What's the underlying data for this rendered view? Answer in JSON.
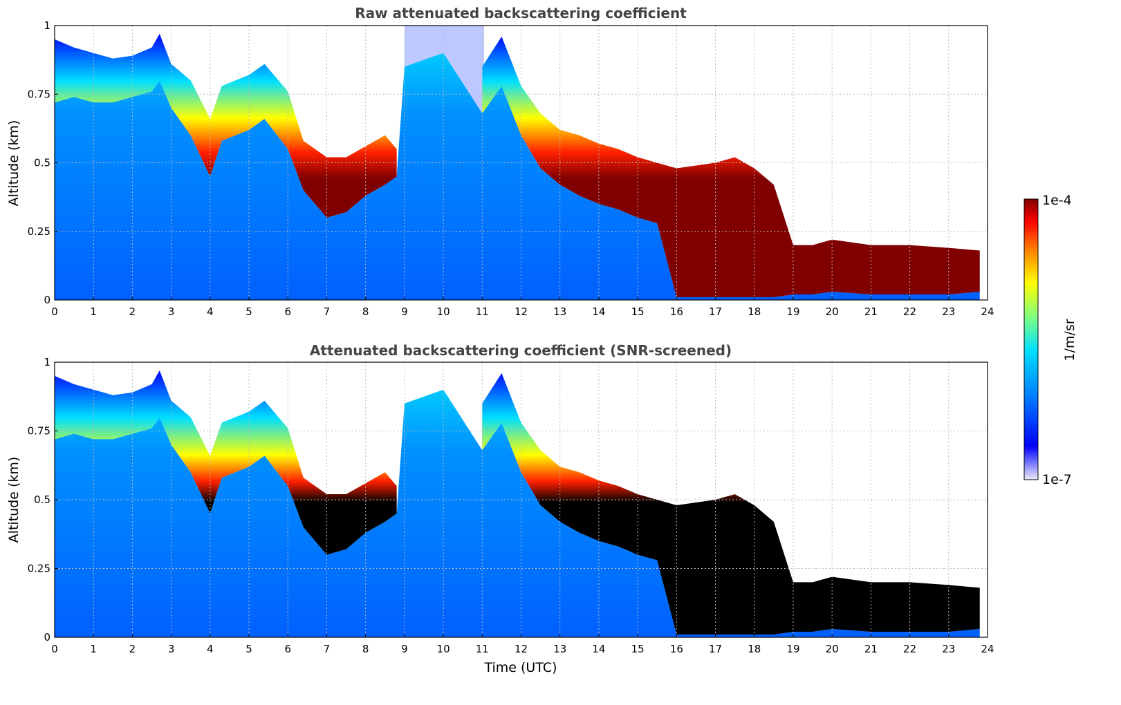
{
  "chart_data": [
    {
      "type": "heatmap",
      "title": "Raw attenuated backscattering coefficient",
      "xlabel": "",
      "ylabel": "Altitude (km)",
      "xlim": [
        0,
        24
      ],
      "ylim": [
        0,
        1
      ],
      "xticks": [
        "0",
        "1",
        "2",
        "3",
        "4",
        "5",
        "6",
        "7",
        "8",
        "9",
        "10",
        "11",
        "12",
        "13",
        "14",
        "15",
        "16",
        "17",
        "18",
        "19",
        "20",
        "21",
        "22",
        "23",
        "24"
      ],
      "yticks": [
        "0",
        "0.25",
        "0.5",
        "0.75",
        "1"
      ],
      "grid": true,
      "layer_top_km": {
        "time_utc": [
          0,
          0.5,
          1,
          1.5,
          2,
          2.5,
          2.7,
          3,
          3.5,
          4,
          4.3,
          5,
          5.4,
          6,
          6.4,
          7,
          7.5,
          8,
          8.5,
          8.8,
          9,
          10,
          11,
          11.5,
          12,
          12.5,
          13,
          13.5,
          14,
          14.5,
          15,
          15.5,
          16,
          17,
          17.5,
          18,
          18.5,
          19,
          19.5,
          20,
          21,
          22,
          23,
          23.8
        ],
        "altitude_km": [
          0.95,
          0.92,
          0.9,
          0.88,
          0.89,
          0.92,
          0.97,
          0.86,
          0.8,
          0.66,
          0.78,
          0.82,
          0.86,
          0.76,
          0.58,
          0.52,
          0.52,
          0.56,
          0.6,
          0.55,
          null,
          null,
          0.85,
          0.96,
          0.78,
          0.68,
          0.62,
          0.6,
          0.57,
          0.55,
          0.52,
          0.5,
          0.48,
          0.5,
          0.52,
          0.48,
          0.42,
          0.2,
          0.2,
          0.22,
          0.2,
          0.2,
          0.19,
          0.18
        ]
      },
      "layer_bottom_km": {
        "time_utc": [
          0,
          0.5,
          1,
          1.5,
          2,
          2.5,
          2.7,
          3,
          3.5,
          4,
          4.3,
          5,
          5.4,
          6,
          6.4,
          7,
          7.5,
          8,
          8.5,
          8.8,
          9,
          10,
          11,
          11.5,
          12,
          12.5,
          13,
          13.5,
          14,
          14.5,
          15,
          15.5,
          16,
          17,
          17.5,
          18,
          18.5,
          19,
          19.5,
          20,
          21,
          22,
          23,
          23.8
        ],
        "altitude_km": [
          0.72,
          0.74,
          0.72,
          0.72,
          0.74,
          0.76,
          0.8,
          0.7,
          0.6,
          0.45,
          0.58,
          0.62,
          0.66,
          0.55,
          0.4,
          0.3,
          0.32,
          0.38,
          0.42,
          0.45,
          null,
          null,
          0.68,
          0.78,
          0.6,
          0.48,
          0.42,
          0.38,
          0.35,
          0.33,
          0.3,
          0.28,
          0.01,
          0.01,
          0.01,
          0.01,
          0.01,
          0.02,
          0.02,
          0.03,
          0.02,
          0.02,
          0.02,
          0.03
        ]
      },
      "colorbar": {
        "label": "1/m/sr",
        "min_label": "1e-7",
        "max_label": "1e-4",
        "scale": "log"
      }
    },
    {
      "type": "heatmap",
      "title": "Attenuated backscattering coefficient (SNR-screened)",
      "xlabel": "Time (UTC)",
      "ylabel": "Altitude (km)",
      "xlim": [
        0,
        24
      ],
      "ylim": [
        0,
        1
      ],
      "xticks": [
        "0",
        "1",
        "2",
        "3",
        "4",
        "5",
        "6",
        "7",
        "8",
        "9",
        "10",
        "11",
        "12",
        "13",
        "14",
        "15",
        "16",
        "17",
        "18",
        "19",
        "20",
        "21",
        "22",
        "23",
        "24"
      ],
      "yticks": [
        "0",
        "0.25",
        "0.5",
        "0.75",
        "1"
      ],
      "grid": true,
      "layer_top_km": {
        "time_utc": [
          0,
          0.5,
          1,
          1.5,
          2,
          2.5,
          2.7,
          3,
          3.5,
          4,
          4.3,
          5,
          5.4,
          6,
          6.4,
          7,
          7.5,
          8,
          8.5,
          8.8,
          9,
          10,
          11,
          11.5,
          12,
          12.5,
          13,
          13.5,
          14,
          14.5,
          15,
          15.5,
          16,
          17,
          17.5,
          18,
          18.5,
          19,
          19.5,
          20,
          21,
          22,
          23,
          23.8
        ],
        "altitude_km": [
          0.95,
          0.92,
          0.9,
          0.88,
          0.89,
          0.92,
          0.97,
          0.86,
          0.8,
          0.66,
          0.78,
          0.82,
          0.86,
          0.76,
          0.58,
          0.52,
          0.52,
          0.56,
          0.6,
          0.55,
          null,
          null,
          0.85,
          0.96,
          0.78,
          0.68,
          0.62,
          0.6,
          0.57,
          0.55,
          0.52,
          0.5,
          0.48,
          0.5,
          0.52,
          0.48,
          0.42,
          0.2,
          0.2,
          0.22,
          0.2,
          0.2,
          0.19,
          0.18
        ]
      },
      "layer_bottom_km": {
        "time_utc": [
          0,
          0.5,
          1,
          1.5,
          2,
          2.5,
          2.7,
          3,
          3.5,
          4,
          4.3,
          5,
          5.4,
          6,
          6.4,
          7,
          7.5,
          8,
          8.5,
          8.8,
          9,
          10,
          11,
          11.5,
          12,
          12.5,
          13,
          13.5,
          14,
          14.5,
          15,
          15.5,
          16,
          17,
          17.5,
          18,
          18.5,
          19,
          19.5,
          20,
          21,
          22,
          23,
          23.8
        ],
        "altitude_km": [
          0.72,
          0.74,
          0.72,
          0.72,
          0.74,
          0.76,
          0.8,
          0.7,
          0.6,
          0.45,
          0.58,
          0.62,
          0.66,
          0.55,
          0.4,
          0.3,
          0.32,
          0.38,
          0.42,
          0.45,
          null,
          null,
          0.68,
          0.78,
          0.6,
          0.48,
          0.42,
          0.38,
          0.35,
          0.33,
          0.3,
          0.28,
          0.01,
          0.01,
          0.01,
          0.01,
          0.01,
          0.02,
          0.02,
          0.03,
          0.02,
          0.02,
          0.02,
          0.03
        ]
      },
      "saturated_color": "#000000",
      "colorbar": {
        "label": "1/m/sr",
        "min_label": "1e-7",
        "max_label": "1e-4",
        "scale": "log"
      }
    }
  ],
  "colors": {
    "saturated_raw": "#800000",
    "saturated_screened": "#000000",
    "background": "#ffffff",
    "colormap": [
      "#e6e6fa",
      "#0000ff",
      "#0080ff",
      "#00dfff",
      "#80ff80",
      "#ffff00",
      "#ff8000",
      "#ff0000",
      "#800000"
    ]
  }
}
